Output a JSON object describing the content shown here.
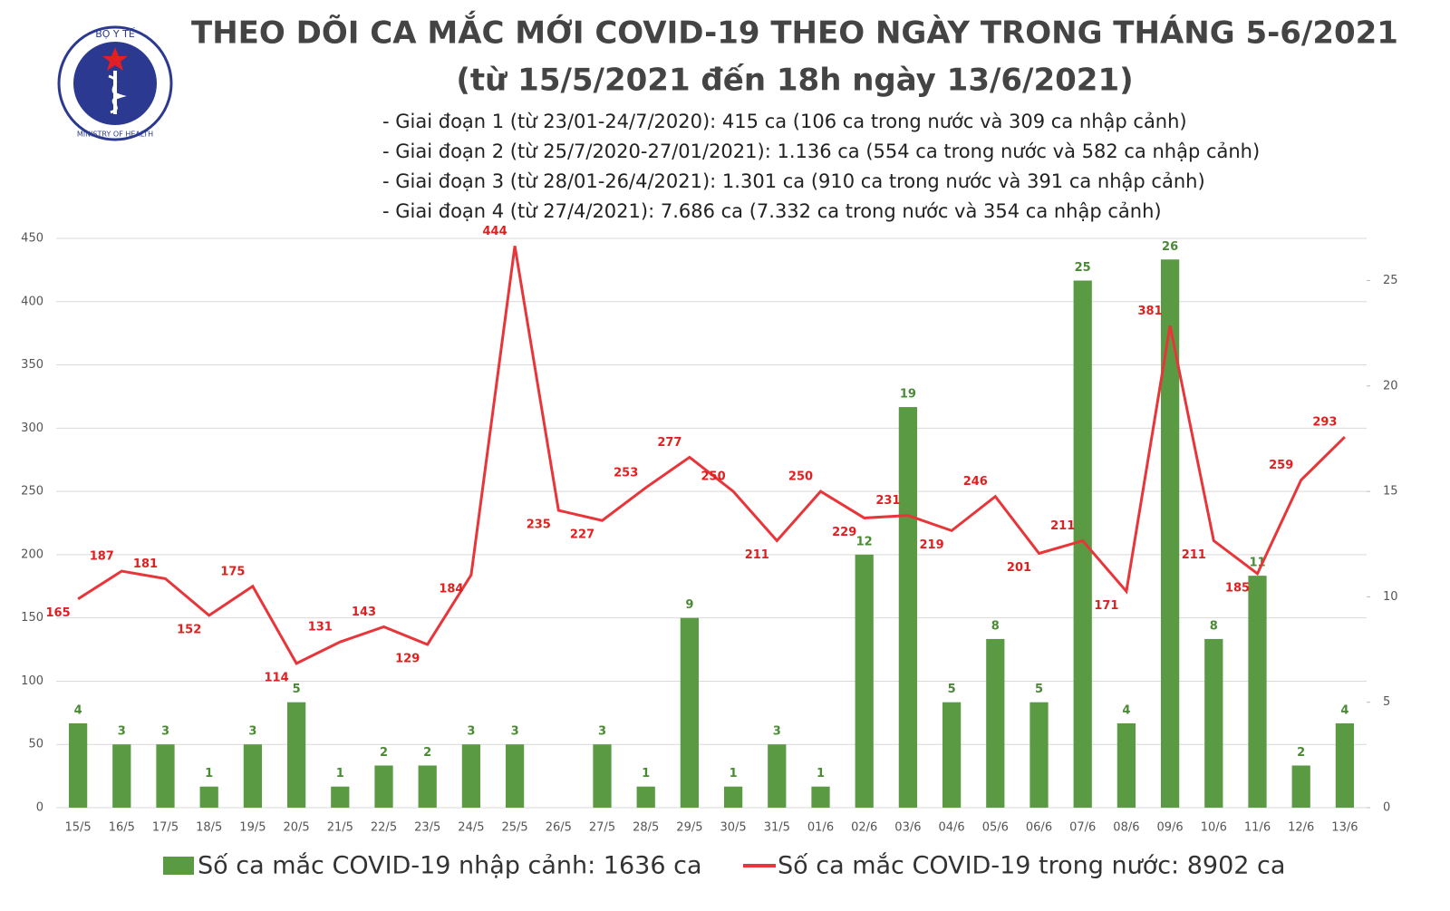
{
  "header": {
    "logo_top": "BỘ Y TẾ",
    "logo_bottom": "MINISTRY OF HEALTH"
  },
  "chart_data": {
    "type": "combo",
    "title": "THEO DÕI CA MẮC MỚI COVID-19 THEO NGÀY TRONG THÁNG 5-6/2021",
    "subtitle": "(từ 15/5/2021 đến 18h ngày 13/6/2021)",
    "annotations": [
      "- Giai đoạn 1 (từ 23/01-24/7/2020): 415 ca (106 ca trong nước và 309 ca nhập cảnh)",
      "- Giai đoạn 2 (từ 25/7/2020-27/01/2021): 1.136 ca (554 ca trong nước và 582 ca nhập cảnh)",
      "- Giai đoạn 3 (từ 28/01-26/4/2021): 1.301 ca (910 ca trong nước và 391 ca nhập cảnh)",
      "- Giai đoạn 4 (từ 27/4/2021): 7.686 ca (7.332 ca trong nước và 354 ca nhập cảnh)"
    ],
    "categories": [
      "15/5",
      "16/5",
      "17/5",
      "18/5",
      "19/5",
      "20/5",
      "21/5",
      "22/5",
      "23/5",
      "24/5",
      "25/5",
      "26/5",
      "27/5",
      "28/5",
      "29/5",
      "30/5",
      "31/5",
      "01/6",
      "02/6",
      "03/6",
      "04/6",
      "05/6",
      "06/6",
      "07/6",
      "08/6",
      "09/6",
      "10/6",
      "11/6",
      "12/6",
      "13/6"
    ],
    "series": [
      {
        "name": "Số ca mắc COVID-19 nhập cảnh: 1636 ca",
        "type": "bar",
        "axis": "y2",
        "color": "#5a9a43",
        "values": [
          4,
          3,
          3,
          1,
          3,
          5,
          1,
          2,
          2,
          3,
          3,
          null,
          3,
          1,
          9,
          1,
          3,
          1,
          12,
          19,
          5,
          8,
          5,
          25,
          4,
          26,
          8,
          11,
          2,
          4
        ]
      },
      {
        "name": "Số ca mắc COVID-19 trong nước: 8902 ca",
        "type": "line",
        "color": "#e8353a",
        "values": [
          165,
          187,
          181,
          152,
          175,
          114,
          131,
          143,
          129,
          184,
          444,
          235,
          227,
          253,
          277,
          250,
          211,
          250,
          229,
          231,
          219,
          246,
          201,
          211,
          171,
          381,
          211,
          185,
          259,
          293
        ]
      }
    ],
    "ylim": [
      0,
      450
    ],
    "yticks": [
      0,
      50,
      100,
      150,
      200,
      250,
      300,
      350,
      400,
      450
    ],
    "y2lim": [
      0,
      27
    ],
    "y2ticks": [
      0,
      5,
      10,
      15,
      20,
      25
    ],
    "grid": true
  }
}
